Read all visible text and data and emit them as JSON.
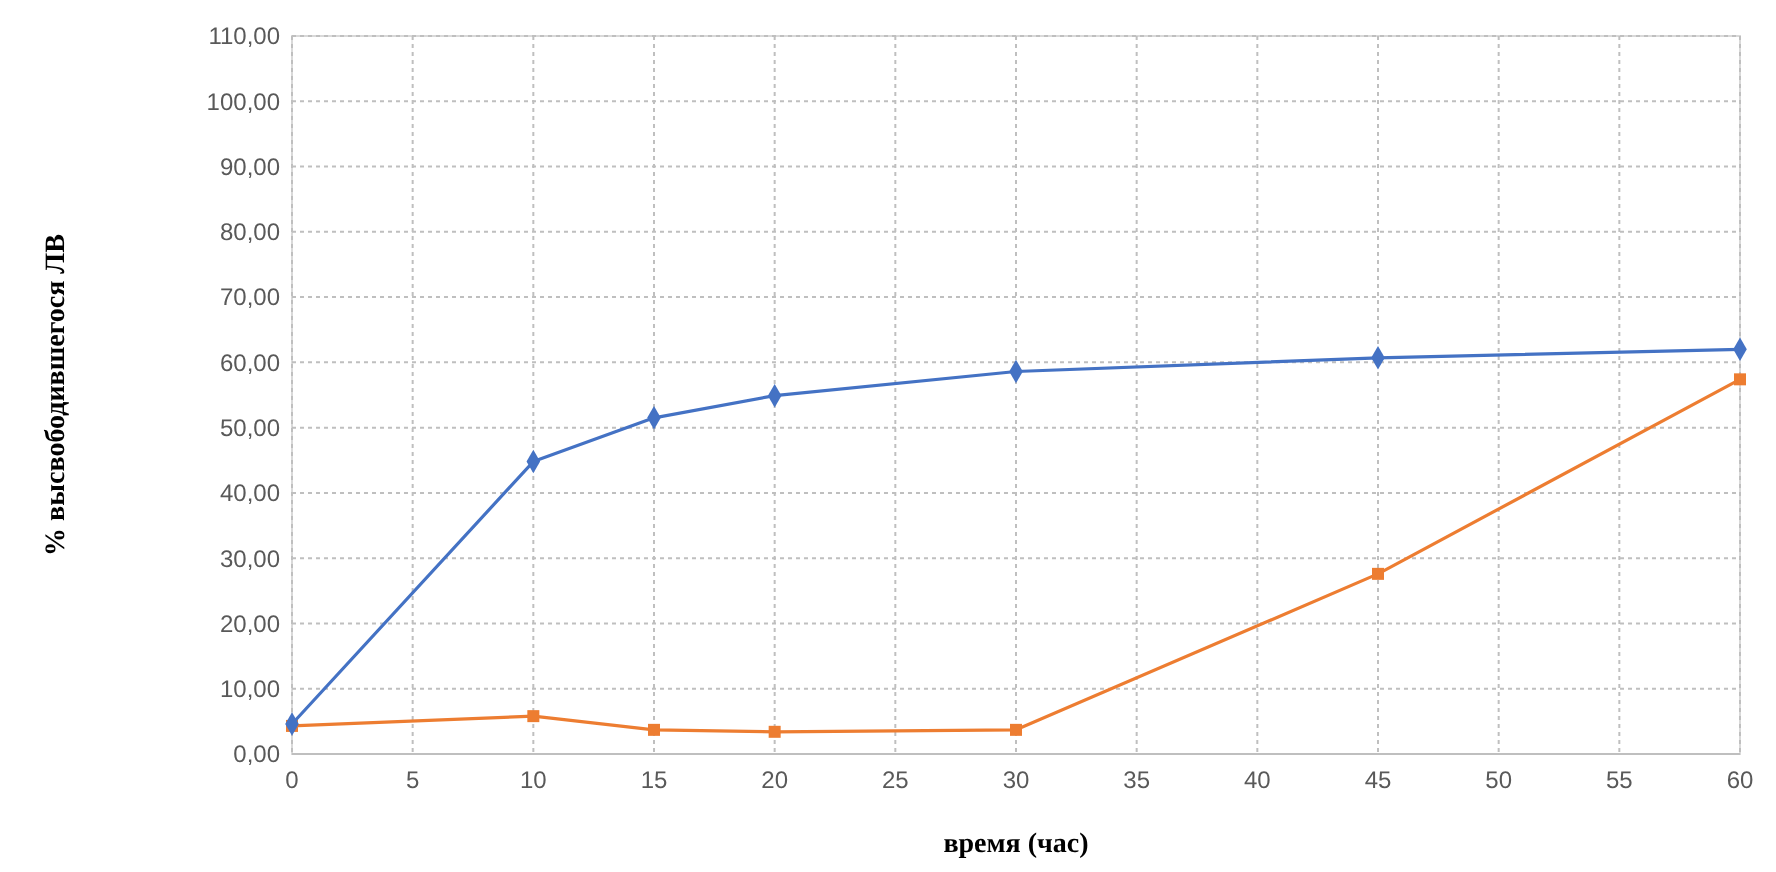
{
  "chart_data": {
    "type": "line",
    "xlabel": "время (час)",
    "ylabel": "% высвободившегося ЛВ",
    "x": [
      0,
      10,
      15,
      20,
      30,
      45,
      60
    ],
    "series": [
      {
        "color": "#4472c4",
        "marker": "diamond",
        "values": [
          4.6,
          44.8,
          51.5,
          54.9,
          58.6,
          60.7,
          62.0
        ]
      },
      {
        "color": "#ed7d31",
        "marker": "square",
        "values": [
          4.3,
          5.8,
          3.7,
          3.4,
          3.7,
          27.6,
          57.4
        ]
      }
    ],
    "xlim": [
      0,
      60
    ],
    "xticks": [
      0,
      5,
      10,
      15,
      20,
      25,
      30,
      35,
      40,
      45,
      50,
      55,
      60
    ],
    "ylim": [
      0,
      110
    ],
    "yticks": [
      {
        "value": 0,
        "label": "0,00"
      },
      {
        "value": 10,
        "label": "10,00"
      },
      {
        "value": 20,
        "label": "20,00"
      },
      {
        "value": 30,
        "label": "30,00"
      },
      {
        "value": 40,
        "label": "40,00"
      },
      {
        "value": 50,
        "label": "50,00"
      },
      {
        "value": 60,
        "label": "60,00"
      },
      {
        "value": 70,
        "label": "70,00"
      },
      {
        "value": 80,
        "label": "80,00"
      },
      {
        "value": 90,
        "label": "90,00"
      },
      {
        "value": 100,
        "label": "100,00"
      },
      {
        "value": 110,
        "label": "110,00"
      }
    ],
    "grid": true,
    "line_style": "solid"
  }
}
